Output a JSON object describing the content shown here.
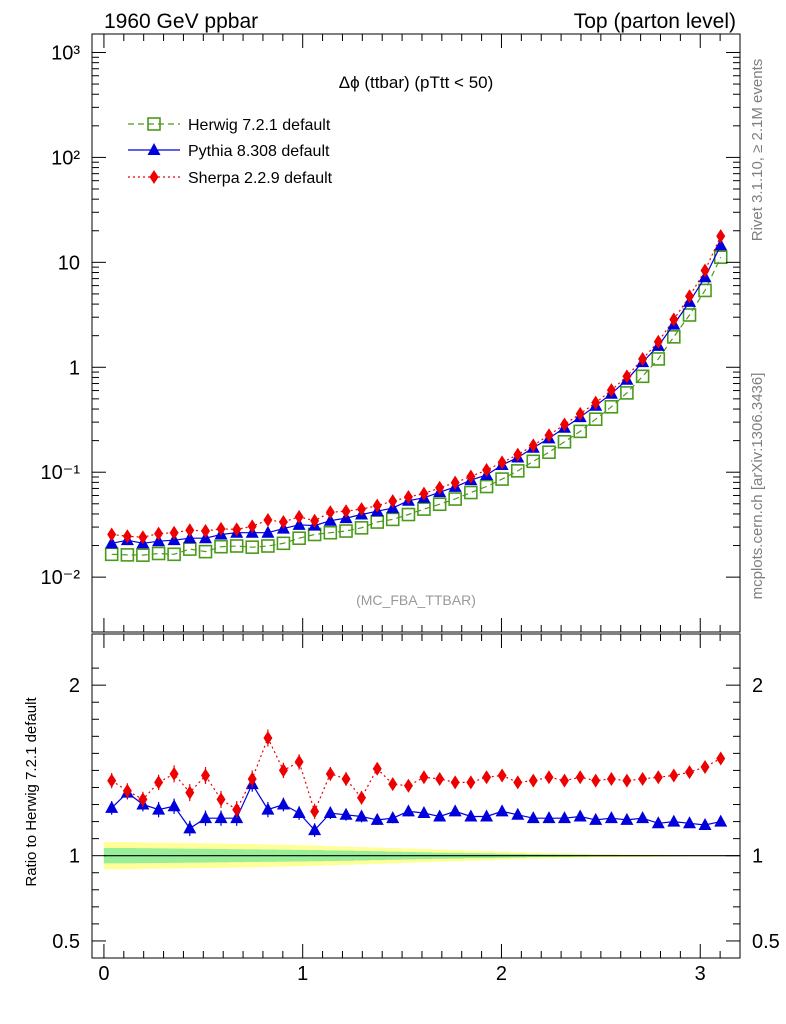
{
  "header": {
    "left": "1960 GeV ppbar",
    "right": "Top (parton level)"
  },
  "side_labels": {
    "rivet": "Rivet 3.1.10, ≥ 2.1M events",
    "mcplots": "mcplots.cern.ch [arXiv:1306.3436]"
  },
  "colors": {
    "herwig": "#4a9a1a",
    "pythia": "#0000dd",
    "sherpa": "#ee0000",
    "band_outer": "#ffff99",
    "band_inner": "#99ee99"
  },
  "chart_data": [
    {
      "type": "line",
      "title": "Δϕ (ttbar) (pTtt < 50)",
      "annotation": "(MC_FBA_TTBAR)",
      "yscale": "log",
      "ylim": [
        0.003,
        1500
      ],
      "xlim": [
        -0.06,
        3.2
      ],
      "y_tick_labels": [
        "10⁻²",
        "10⁻¹",
        "1",
        "10",
        "10²",
        "10³"
      ],
      "legend_position": "top-left",
      "x": [
        0.039,
        0.118,
        0.196,
        0.275,
        0.353,
        0.432,
        0.511,
        0.589,
        0.668,
        0.746,
        0.825,
        0.903,
        0.982,
        1.06,
        1.139,
        1.218,
        1.296,
        1.375,
        1.453,
        1.532,
        1.61,
        1.689,
        1.767,
        1.846,
        1.925,
        2.003,
        2.082,
        2.16,
        2.239,
        2.317,
        2.396,
        2.474,
        2.553,
        2.631,
        2.71,
        2.789,
        2.867,
        2.946,
        3.024,
        3.103
      ],
      "series": [
        {
          "name": "Herwig 7.2.1 default",
          "values": [
            0.0165,
            0.0163,
            0.0162,
            0.0168,
            0.0165,
            0.0185,
            0.0175,
            0.0195,
            0.0198,
            0.0193,
            0.0198,
            0.021,
            0.0235,
            0.0255,
            0.0265,
            0.0275,
            0.0295,
            0.0335,
            0.0355,
            0.0395,
            0.0445,
            0.0495,
            0.0555,
            0.064,
            0.073,
            0.086,
            0.103,
            0.127,
            0.155,
            0.195,
            0.245,
            0.32,
            0.42,
            0.57,
            0.82,
            1.2,
            1.95,
            3.15,
            5.4,
            11.2
          ]
        },
        {
          "name": "Pythia 8.308 default",
          "values": [
            0.021,
            0.0225,
            0.021,
            0.022,
            0.0225,
            0.0235,
            0.0235,
            0.0255,
            0.0265,
            0.0265,
            0.0265,
            0.029,
            0.0315,
            0.031,
            0.0345,
            0.0365,
            0.0395,
            0.0425,
            0.0455,
            0.0535,
            0.057,
            0.0645,
            0.0725,
            0.084,
            0.094,
            0.117,
            0.138,
            0.171,
            0.21,
            0.265,
            0.335,
            0.43,
            0.56,
            0.76,
            1.12,
            1.6,
            2.55,
            4.2,
            7.2,
            14.5
          ]
        },
        {
          "name": "Sherpa 2.2.9 default",
          "values": [
            0.0255,
            0.0245,
            0.024,
            0.026,
            0.0265,
            0.028,
            0.0275,
            0.0288,
            0.0285,
            0.0305,
            0.035,
            0.0335,
            0.0375,
            0.0345,
            0.0415,
            0.0425,
            0.0445,
            0.048,
            0.053,
            0.058,
            0.0625,
            0.071,
            0.0795,
            0.091,
            0.105,
            0.124,
            0.147,
            0.18,
            0.225,
            0.285,
            0.36,
            0.46,
            0.605,
            0.82,
            1.2,
            1.75,
            2.85,
            4.75,
            8.35,
            17.8
          ]
        }
      ]
    },
    {
      "type": "line",
      "ylabel": "Ratio to Herwig 7.2.1 default",
      "ylim": [
        0.4,
        2.3
      ],
      "y_ticks": [
        0.5,
        1,
        2
      ],
      "x_ticks": [
        0,
        1,
        2,
        3
      ],
      "x": [
        0.039,
        0.118,
        0.196,
        0.275,
        0.353,
        0.432,
        0.511,
        0.589,
        0.668,
        0.746,
        0.825,
        0.903,
        0.982,
        1.06,
        1.139,
        1.218,
        1.296,
        1.375,
        1.453,
        1.532,
        1.61,
        1.689,
        1.767,
        1.846,
        1.925,
        2.003,
        2.082,
        2.16,
        2.239,
        2.317,
        2.396,
        2.474,
        2.553,
        2.631,
        2.71,
        2.789,
        2.867,
        2.946,
        3.024,
        3.103
      ],
      "band": {
        "outer_halfwidth": [
          0.08,
          0.08,
          0.078,
          0.076,
          0.075,
          0.074,
          0.073,
          0.071,
          0.07,
          0.068,
          0.066,
          0.064,
          0.062,
          0.06,
          0.057,
          0.054,
          0.051,
          0.048,
          0.045,
          0.042,
          0.039,
          0.036,
          0.033,
          0.03,
          0.027,
          0.024,
          0.021,
          0.018,
          0.016,
          0.014,
          0.012,
          0.01,
          0.009,
          0.008,
          0.007,
          0.006,
          0.005,
          0.004,
          0.004,
          0.003
        ],
        "inner_halfwidth": [
          0.045,
          0.045,
          0.044,
          0.043,
          0.042,
          0.041,
          0.04,
          0.039,
          0.038,
          0.037,
          0.036,
          0.035,
          0.034,
          0.033,
          0.031,
          0.03,
          0.028,
          0.026,
          0.024,
          0.022,
          0.02,
          0.018,
          0.017,
          0.015,
          0.014,
          0.012,
          0.011,
          0.009,
          0.008,
          0.007,
          0.006,
          0.005,
          0.005,
          0.004,
          0.004,
          0.003,
          0.003,
          0.002,
          0.002,
          0.002
        ]
      },
      "series": [
        {
          "name": "Pythia 8.308 default",
          "values": [
            1.28,
            1.37,
            1.3,
            1.27,
            1.29,
            1.16,
            1.22,
            1.22,
            1.22,
            1.42,
            1.27,
            1.3,
            1.25,
            1.15,
            1.25,
            1.24,
            1.23,
            1.21,
            1.22,
            1.26,
            1.25,
            1.23,
            1.26,
            1.23,
            1.23,
            1.26,
            1.24,
            1.22,
            1.22,
            1.22,
            1.23,
            1.21,
            1.22,
            1.21,
            1.22,
            1.19,
            1.2,
            1.19,
            1.18,
            1.2
          ],
          "errors": [
            0.04,
            0.04,
            0.04,
            0.045,
            0.045,
            0.045,
            0.045,
            0.045,
            0.045,
            0.045,
            0.045,
            0.04,
            0.04,
            0.04,
            0.035,
            0.035,
            0.035,
            0.03,
            0.03,
            0.03,
            0.025,
            0.025,
            0.02,
            0.02,
            0.02,
            0.015,
            0.015,
            0.015,
            0.015,
            0.01,
            0.01,
            0.01,
            0.01,
            0.01,
            0.01,
            0.01,
            0.01,
            0.01,
            0.008,
            0.008
          ]
        },
        {
          "name": "Sherpa 2.2.9 default",
          "values": [
            1.44,
            1.38,
            1.33,
            1.43,
            1.48,
            1.37,
            1.47,
            1.33,
            1.27,
            1.45,
            1.69,
            1.5,
            1.55,
            1.26,
            1.48,
            1.45,
            1.34,
            1.51,
            1.42,
            1.41,
            1.46,
            1.45,
            1.43,
            1.43,
            1.46,
            1.47,
            1.43,
            1.44,
            1.46,
            1.44,
            1.46,
            1.44,
            1.45,
            1.44,
            1.45,
            1.46,
            1.47,
            1.49,
            1.52,
            1.57
          ],
          "errors": [
            0.045,
            0.045,
            0.045,
            0.045,
            0.05,
            0.05,
            0.05,
            0.05,
            0.05,
            0.05,
            0.05,
            0.045,
            0.045,
            0.045,
            0.04,
            0.04,
            0.04,
            0.035,
            0.035,
            0.03,
            0.03,
            0.025,
            0.025,
            0.02,
            0.02,
            0.02,
            0.015,
            0.015,
            0.015,
            0.012,
            0.012,
            0.01,
            0.01,
            0.01,
            0.01,
            0.01,
            0.01,
            0.01,
            0.008,
            0.008
          ]
        }
      ]
    }
  ]
}
